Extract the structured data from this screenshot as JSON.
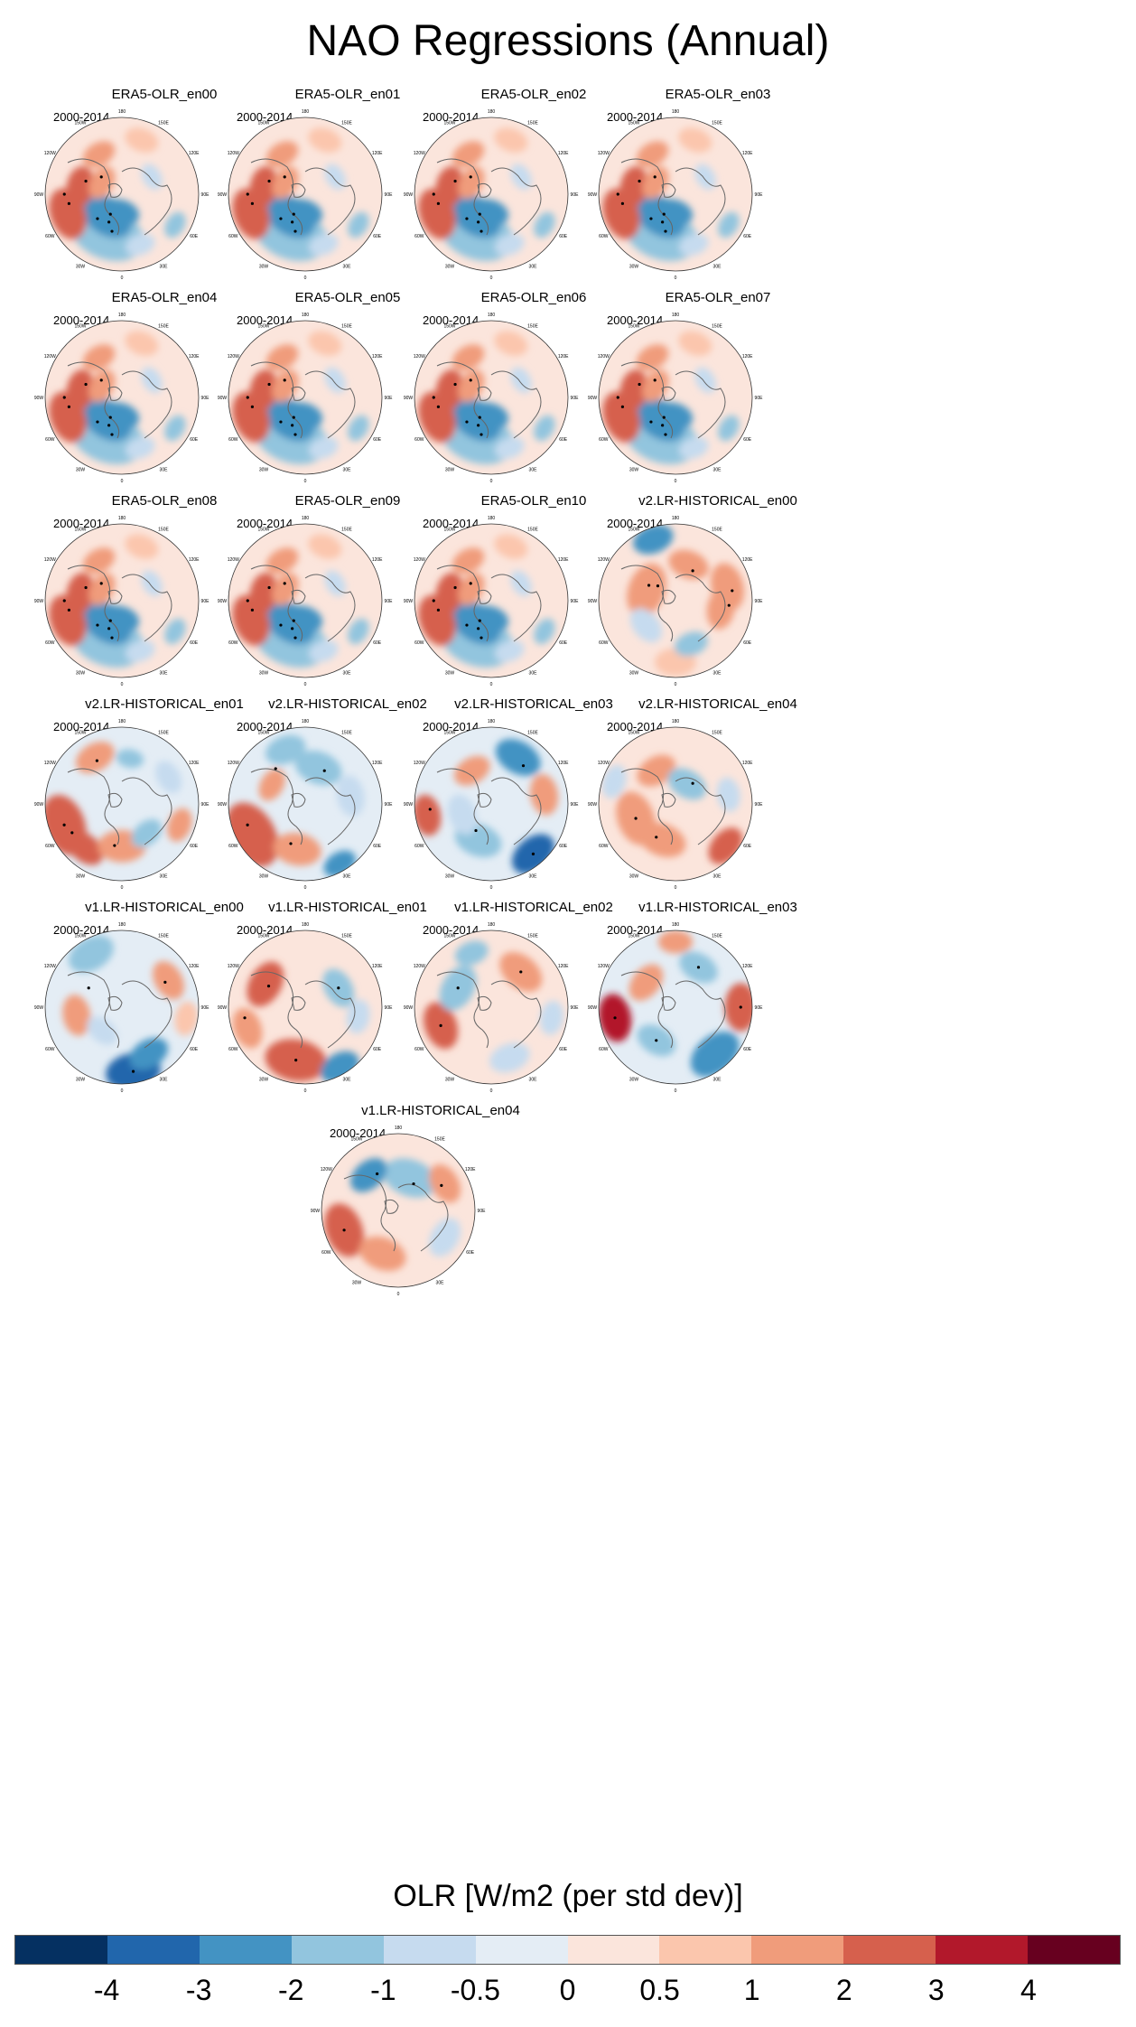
{
  "title": "NAO Regressions (Annual)",
  "period": "2000-2014",
  "lon_labels": [
    "180",
    "150E",
    "120E",
    "90E",
    "60E",
    "30E",
    "0",
    "30W",
    "60W",
    "90W",
    "120W",
    "150W"
  ],
  "panels": [
    {
      "name": "ERA5-OLR_en00",
      "pattern": "era5"
    },
    {
      "name": "ERA5-OLR_en01",
      "pattern": "era5"
    },
    {
      "name": "ERA5-OLR_en02",
      "pattern": "era5"
    },
    {
      "name": "ERA5-OLR_en03",
      "pattern": "era5"
    },
    {
      "name": "ERA5-OLR_en04",
      "pattern": "era5"
    },
    {
      "name": "ERA5-OLR_en05",
      "pattern": "era5"
    },
    {
      "name": "ERA5-OLR_en06",
      "pattern": "era5"
    },
    {
      "name": "ERA5-OLR_en07",
      "pattern": "era5"
    },
    {
      "name": "ERA5-OLR_en08",
      "pattern": "era5"
    },
    {
      "name": "ERA5-OLR_en09",
      "pattern": "era5"
    },
    {
      "name": "ERA5-OLR_en10",
      "pattern": "era5"
    },
    {
      "name": "v2.LR-HISTORICAL_en00",
      "pattern": "v2a"
    },
    {
      "name": "v2.LR-HISTORICAL_en01",
      "pattern": "v2b"
    },
    {
      "name": "v2.LR-HISTORICAL_en02",
      "pattern": "v2c"
    },
    {
      "name": "v2.LR-HISTORICAL_en03",
      "pattern": "v2d"
    },
    {
      "name": "v2.LR-HISTORICAL_en04",
      "pattern": "v2e"
    },
    {
      "name": "v1.LR-HISTORICAL_en00",
      "pattern": "v1a"
    },
    {
      "name": "v1.LR-HISTORICAL_en01",
      "pattern": "v1b"
    },
    {
      "name": "v1.LR-HISTORICAL_en02",
      "pattern": "v1c"
    },
    {
      "name": "v1.LR-HISTORICAL_en03",
      "pattern": "v1d"
    },
    {
      "name": "v1.LR-HISTORICAL_en04",
      "pattern": "v1e"
    }
  ],
  "colorbar": {
    "title": "OLR [W/m2 (per std dev)]",
    "colors": [
      "#053061",
      "#2166ac",
      "#4393c3",
      "#92c5de",
      "#c6dbef",
      "#e4edf5",
      "#fbe5dc",
      "#fbc6ad",
      "#f09c7b",
      "#d6604d",
      "#b2182b",
      "#67001f"
    ],
    "ticks": [
      "-4",
      "-3",
      "-2",
      "-1",
      "-0.5",
      "0",
      "0.5",
      "1",
      "2",
      "3",
      "4"
    ]
  }
}
